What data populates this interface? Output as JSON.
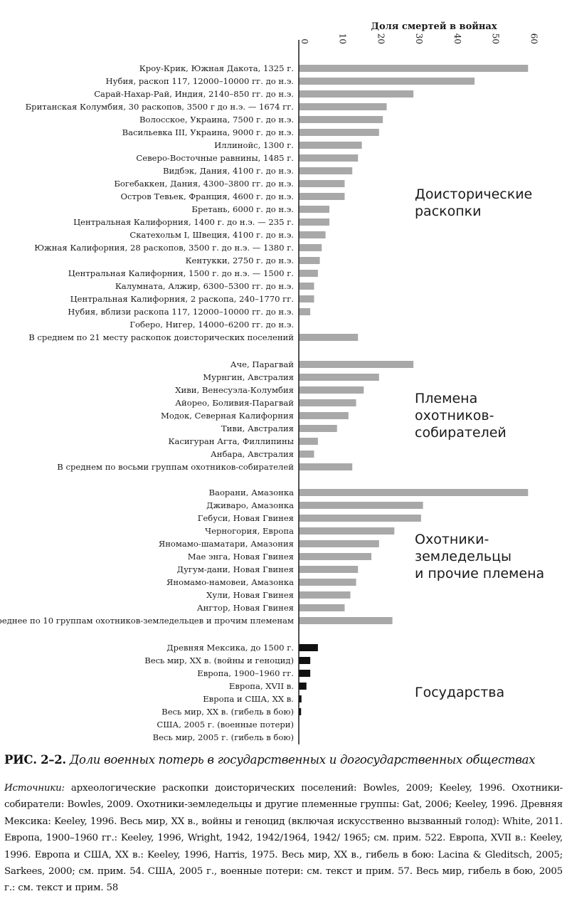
{
  "chart_data": {
    "type": "bar",
    "orientation": "horizontal",
    "title": "Доля смертей в войнах",
    "xlim": [
      0,
      70
    ],
    "x_ticks": [
      "0",
      "10",
      "20",
      "30",
      "40",
      "50",
      "60",
      "70"
    ],
    "colors": {
      "nonstate": "#a8a8a8",
      "state": "#111111"
    },
    "groups": [
      {
        "name": "Доисторические раскопки",
        "label_lines": [
          "Доисторические",
          "раскопки"
        ],
        "color_key": "nonstate",
        "items": [
          {
            "label": "Кроу-Крик, Южная Дакота, 1325 г.",
            "value": 60
          },
          {
            "label": "Нубия, раскоп 117, 12000–10000 гг. до н.э.",
            "value": 46
          },
          {
            "label": "Сарай-Нахар-Рай, Индия, 2140–850 гг. до н.э.",
            "value": 30
          },
          {
            "label": "Британская Колумбия, 30 раскопов, 3500 г до н.э. — 1674 гг.",
            "value": 23
          },
          {
            "label": "Волосское, Украина, 7500 г. до н.э.",
            "value": 22
          },
          {
            "label": "Васильевка III, Украина, 9000 г. до н.э.",
            "value": 21
          },
          {
            "label": "Иллинойс, 1300 г.",
            "value": 16.5
          },
          {
            "label": "Северо-Восточные равнины, 1485 г.",
            "value": 15.5
          },
          {
            "label": "Видбэк, Дания, 4100 г. до н.э.",
            "value": 14
          },
          {
            "label": "Богебаккен, Дания, 4300–3800 гг. до н.э.",
            "value": 12
          },
          {
            "label": "Остров Тевьек, Франция, 4600 г. до н.э.",
            "value": 12
          },
          {
            "label": "Бретань, 6000 г. до н.э.",
            "value": 8
          },
          {
            "label": "Центральная Калифорния, 1400 г. до н.э. — 235 г.",
            "value": 8
          },
          {
            "label": "Скатехольм I, Швеция, 4100 г. до н.э.",
            "value": 7
          },
          {
            "label": "Южная Калифорния, 28 раскопов, 3500 г. до н.э. — 1380 г.",
            "value": 6
          },
          {
            "label": "Кентукки, 2750 г. до н.э.",
            "value": 5.5
          },
          {
            "label": "Центральная Калифорния, 1500 г. до н.э. — 1500 г.",
            "value": 5
          },
          {
            "label": "Калумната, Алжир, 6300–5300 гг. до н.э.",
            "value": 4
          },
          {
            "label": "Центральная Калифорния, 2 раскопа, 240–1770 гг.",
            "value": 4
          },
          {
            "label": "Нубия, вблизи раскопа 117, 12000–10000 гг. до н.э.",
            "value": 3
          },
          {
            "label": "Гоберо, Нигер, 14000–6200 гг. до н.э.",
            "value": 0
          },
          {
            "label": "В среднем по 21 месту раскопок доисторических поселений",
            "value": 15.5
          }
        ]
      },
      {
        "name": "Племена охотников-собирателей",
        "label_lines": [
          "Племена",
          "охотников-",
          "собирателей"
        ],
        "color_key": "nonstate",
        "items": [
          {
            "label": "Аче, Парагвай",
            "value": 30
          },
          {
            "label": "Мурнгин, Австралия",
            "value": 21
          },
          {
            "label": "Хиви, Венесуэла-Колумбия",
            "value": 17
          },
          {
            "label": "Айорео, Боливия-Парагвай",
            "value": 15
          },
          {
            "label": "Модок, Северная Калифорния",
            "value": 13
          },
          {
            "label": "Тиви, Австралия",
            "value": 10
          },
          {
            "label": "Касигуран Агта, Филлипины",
            "value": 5
          },
          {
            "label": "Анбара, Австралия",
            "value": 4
          },
          {
            "label": "В среднем по восьми группам охотников-собирателей",
            "value": 14
          }
        ]
      },
      {
        "name": "Охотники-земледельцы и прочие племена",
        "label_lines": [
          "Охотники-",
          "земледельцы",
          "и прочие племена"
        ],
        "color_key": "nonstate",
        "items": [
          {
            "label": "Ваорани, Амазонка",
            "value": 60
          },
          {
            "label": "Дживаро, Амазонка",
            "value": 32.5
          },
          {
            "label": "Гебуси, Новая Гвинея",
            "value": 32
          },
          {
            "label": "Черногория, Европа",
            "value": 25
          },
          {
            "label": "Яномамо-шаматари, Амазония",
            "value": 21
          },
          {
            "label": "Мае энга, Новая Гвинея",
            "value": 19
          },
          {
            "label": "Дугум-дани, Новая Гвинея",
            "value": 15.5
          },
          {
            "label": "Яномамо-намовеи, Амазонка",
            "value": 15
          },
          {
            "label": "Хули, Новая Гвинея",
            "value": 13.5
          },
          {
            "label": "Ангтор, Новая Гвинея",
            "value": 12
          },
          {
            "label": "Среднее по 10 группам охотников-земледельцев и прочим племенам",
            "value": 24.5
          }
        ]
      },
      {
        "name": "Государства",
        "label_lines": [
          "Государства"
        ],
        "color_key": "state",
        "items": [
          {
            "label": "Древняя Мексика, до 1500 г.",
            "value": 5
          },
          {
            "label": "Весь мир, XX в. (войны и геноцид)",
            "value": 3
          },
          {
            "label": "Европа, 1900–1960 гг.",
            "value": 3
          },
          {
            "label": "Европа, XVII в.",
            "value": 2
          },
          {
            "label": "Европа и США, XX в.",
            "value": 0.7
          },
          {
            "label": "Весь мир, XX в. (гибель в бою)",
            "value": 0.6
          },
          {
            "label": "США, 2005 г. (военные потери)",
            "value": 0.01
          },
          {
            "label": "Весь мир, 2005 г. (гибель в бою)",
            "value": 0.01
          }
        ]
      }
    ]
  },
  "caption": {
    "fig_label": "РИС. 2–2.",
    "text": "Доли военных потерь в государственных и догосударственных обществах"
  },
  "sources": {
    "label": "Источники:",
    "text": "археологические раскопки доисторических поселений: Bowles, 2009; Keeley, 1996. Охотники-собиратели: Bowles, 2009. Охотники-земледельцы и другие племенные группы: Gat, 2006; Keeley, 1996. Древняя Мексика: Keeley, 1996. Весь мир, XX в., войны и геноцид (включая искусственно вызванный голод): White, 2011. Европа, 1900–1960 гг.: Keeley, 1996, Wright, 1942, 1942/1964, 1942/ 1965; см. прим. 522. Европа, XVII в.: Keeley, 1996. Европа и США, XX в.: Keeley, 1996, Harris, 1975. Весь мир, XX в., гибель в бою: Lacina & Gleditsch, 2005; Sarkees, 2000; см. прим. 54. США, 2005 г., военные потери: см. текст и прим. 57. Весь мир, гибель в бою, 2005 г.: см. текст и прим. 58"
  }
}
